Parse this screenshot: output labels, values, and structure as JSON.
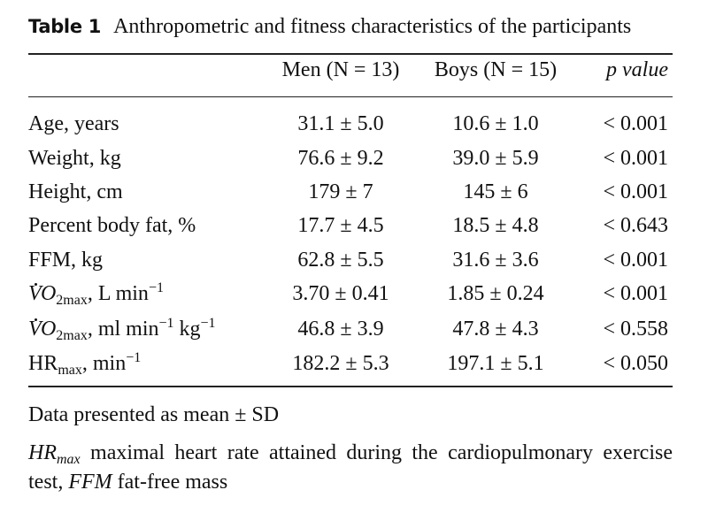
{
  "caption": {
    "label": "Table 1",
    "text": "Anthropometric and fitness characteristics of the participants"
  },
  "header": {
    "men": "Men (N = 13)",
    "boys": "Boys (N = 15)",
    "p_value": "p value"
  },
  "rows": [
    {
      "label": "Age, years",
      "men": "31.1 ± 5.0",
      "boys": "10.6 ± 1.0",
      "p": "< 0.001"
    },
    {
      "label": "Weight, kg",
      "men": "76.6 ± 9.2",
      "boys": "39.0 ± 5.9",
      "p": "< 0.001"
    },
    {
      "label": "Height, cm",
      "men": "179 ± 7",
      "boys": "145 ± 6",
      "p": "< 0.001"
    },
    {
      "label": "Percent body fat, %",
      "men": "17.7 ± 4.5",
      "boys": "18.5 ± 4.8",
      "p": "< 0.643"
    },
    {
      "label": "FFM, kg",
      "men": "62.8 ± 5.5",
      "boys": "31.6 ± 3.6",
      "p": "< 0.001"
    },
    {
      "label_main": "VO",
      "label_sub": "2max",
      "label_rest": ", L min",
      "label_sup": "−1",
      "men": "3.70 ± 0.41",
      "boys": "1.85 ± 0.24",
      "p": "< 0.001"
    },
    {
      "label_main": "VO",
      "label_sub": "2max",
      "label_rest": ", ml min",
      "label_sup": "−1",
      "label_rest2": " kg",
      "label_sup2": "−1",
      "men": "46.8 ± 3.9",
      "boys": "47.8 ± 4.3",
      "p": "< 0.558"
    },
    {
      "label_main": "HR",
      "label_sub": "max",
      "label_rest": ", min",
      "label_sup": "−1",
      "men": "182.2 ± 5.3",
      "boys": "197.1 ± 5.1",
      "p": "< 0.050"
    }
  ],
  "footnotes": {
    "data_note": "Data presented as mean ± SD",
    "abbr_hr": "HR",
    "abbr_hr_sub": "max",
    "abbr_hr_def": " maximal heart rate attained during the cardiopulmonary exercise test, ",
    "abbr_ffm": "FFM",
    "abbr_ffm_def": " fat-free mass"
  }
}
